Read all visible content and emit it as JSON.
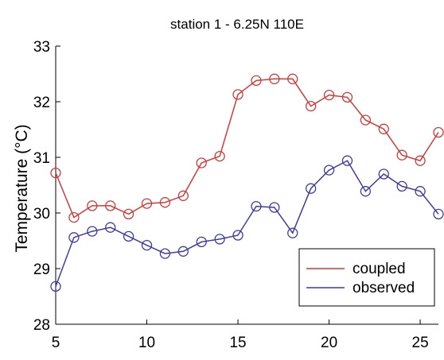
{
  "chart_data": {
    "type": "line",
    "title": "station 1 - 6.25N 110E",
    "xlabel": "",
    "ylabel": "Temperature (°C)",
    "xlim": [
      5,
      26
    ],
    "ylim": [
      28,
      33
    ],
    "xticks": [
      5,
      10,
      15,
      20,
      25
    ],
    "yticks": [
      28,
      29,
      30,
      31,
      32,
      33
    ],
    "grid": false,
    "legend_position": "bottom-right",
    "x": [
      5,
      6,
      7,
      8,
      9,
      10,
      11,
      12,
      13,
      14,
      15,
      16,
      17,
      18,
      19,
      20,
      21,
      22,
      23,
      24,
      25,
      26
    ],
    "series": [
      {
        "name": "coupled",
        "color": "#d23a3a",
        "marker": "circle",
        "values": [
          30.72,
          29.92,
          30.13,
          30.13,
          29.98,
          30.17,
          30.19,
          30.31,
          30.9,
          31.02,
          32.13,
          32.38,
          32.41,
          32.41,
          31.92,
          32.12,
          32.08,
          31.67,
          31.51,
          31.04,
          30.94,
          31.45
        ]
      },
      {
        "name": "observed",
        "color": "#3c3ca8",
        "marker": "circle",
        "values": [
          28.68,
          29.56,
          29.67,
          29.74,
          29.58,
          29.42,
          29.27,
          29.31,
          29.48,
          29.53,
          29.6,
          30.12,
          30.1,
          29.64,
          30.44,
          30.77,
          30.94,
          30.39,
          30.7,
          30.48,
          30.39,
          29.98
        ]
      }
    ]
  }
}
